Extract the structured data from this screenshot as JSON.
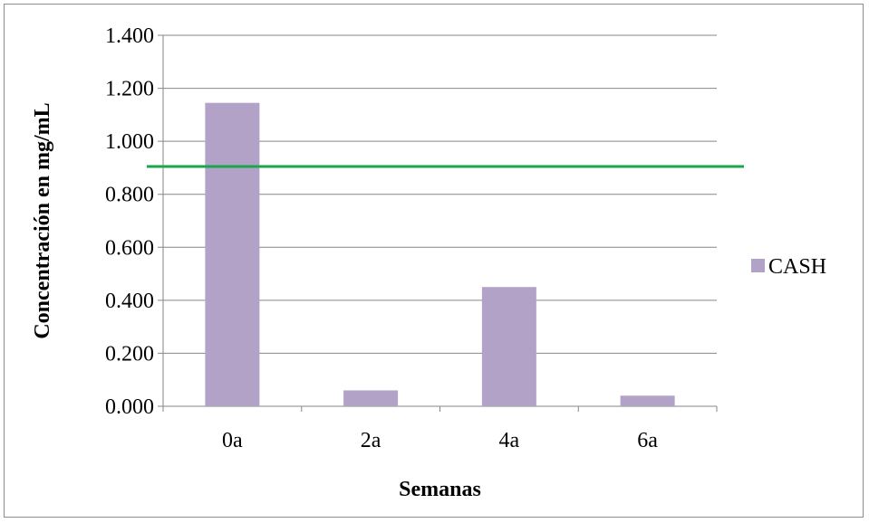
{
  "chart_data": {
    "type": "bar",
    "categories": [
      "0a",
      "2a",
      "4a",
      "6a"
    ],
    "series": [
      {
        "name": "CASH",
        "values": [
          1.145,
          0.06,
          0.45,
          0.04
        ],
        "color": "#b3a2c7"
      }
    ],
    "xlabel": "Semanas",
    "ylabel": "Concentración en mg/mL",
    "ylim": [
      0,
      1.4
    ],
    "yticks": [
      0,
      0.2,
      0.4,
      0.6,
      0.8,
      1.0,
      1.2,
      1.4
    ],
    "ytick_labels": [
      "0.000",
      "0.200",
      "0.400",
      "0.600",
      "0.800",
      "1.000",
      "1.200",
      "1.400"
    ],
    "reference_line": {
      "value": 0.905,
      "color": "#1aa64a"
    },
    "grid": true,
    "gridline_color": "#868686",
    "legend_position": "right"
  }
}
